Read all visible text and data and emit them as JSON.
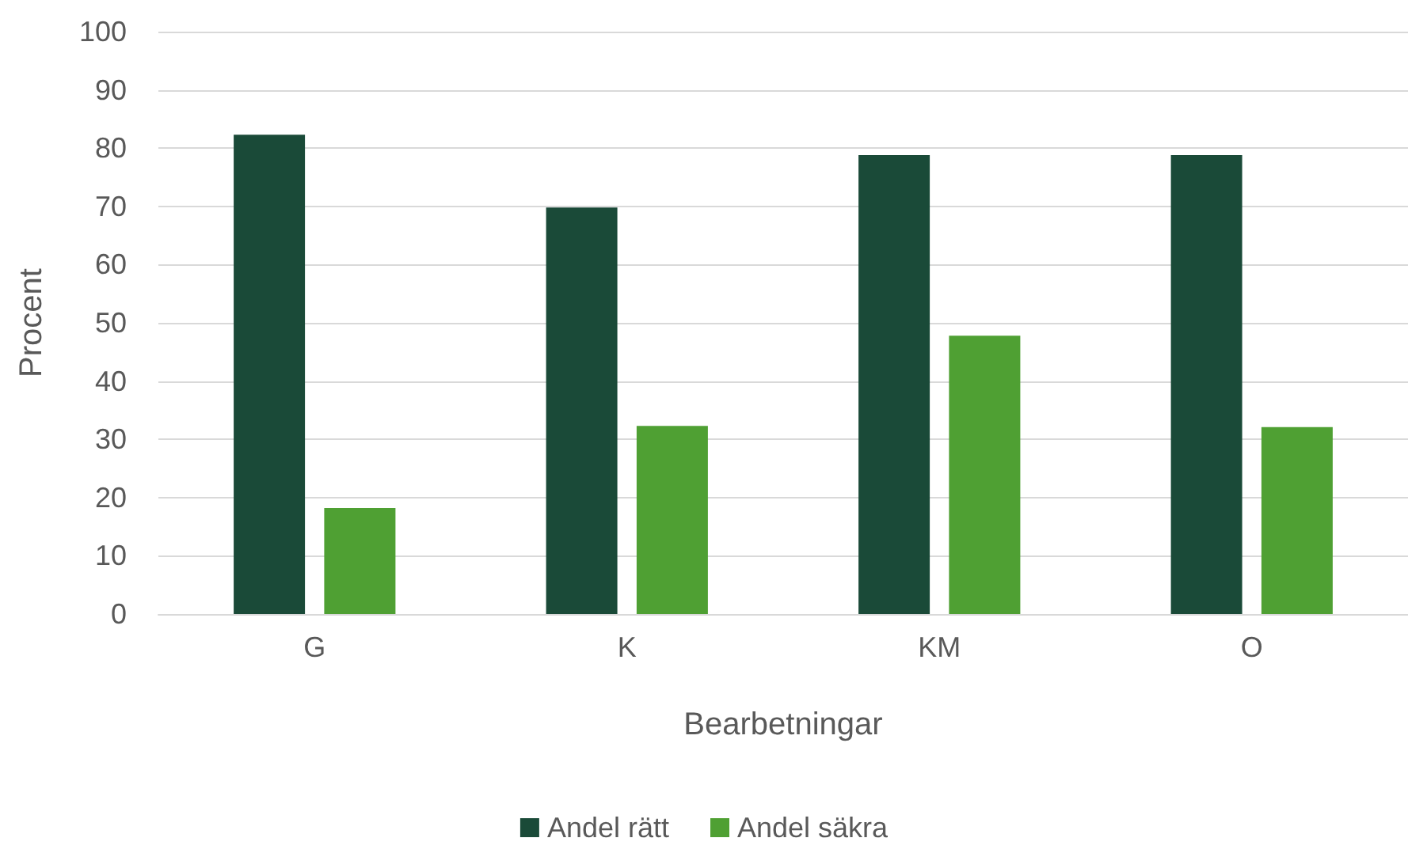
{
  "chart_data": {
    "type": "bar",
    "xlabel": "Bearbetningar",
    "ylabel": "Procent",
    "categories": [
      "G",
      "K",
      "KM",
      "O"
    ],
    "series": [
      {
        "name": "Andel rätt",
        "color": "#1a4a38",
        "values": [
          82.3,
          69.8,
          78.8,
          78.8
        ]
      },
      {
        "name": "Andel säkra",
        "color": "#4fa033",
        "values": [
          18.2,
          32.3,
          47.8,
          32.1
        ]
      }
    ],
    "ylim": [
      0,
      100
    ],
    "yticks": [
      0,
      10,
      20,
      30,
      40,
      50,
      60,
      70,
      80,
      90,
      100
    ],
    "grid": "y",
    "legend": "bottom"
  }
}
